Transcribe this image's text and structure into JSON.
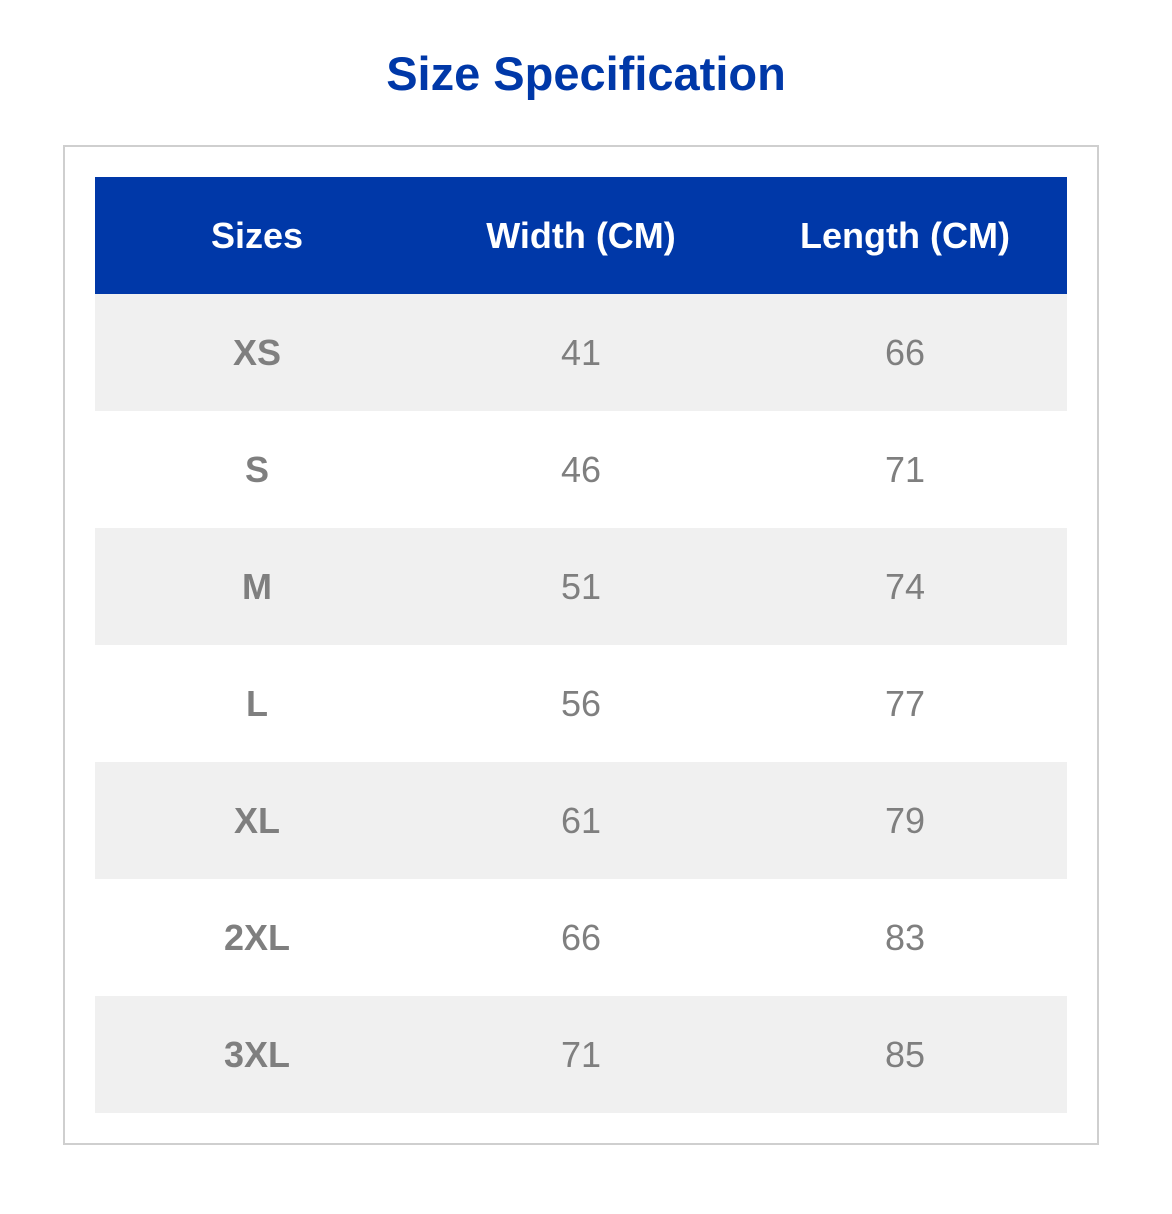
{
  "title": "Size Specification",
  "colors": {
    "accent": "#0038a8",
    "row_alt": "#f0f0f0",
    "text": "#7f7f7f"
  },
  "table": {
    "headers": [
      "Sizes",
      "Width (CM)",
      "Length (CM)"
    ],
    "rows": [
      [
        "XS",
        "41",
        "66"
      ],
      [
        "S",
        "46",
        "71"
      ],
      [
        "M",
        "51",
        "74"
      ],
      [
        "L",
        "56",
        "77"
      ],
      [
        "XL",
        "61",
        "79"
      ],
      [
        "2XL",
        "66",
        "83"
      ],
      [
        "3XL",
        "71",
        "85"
      ]
    ]
  }
}
